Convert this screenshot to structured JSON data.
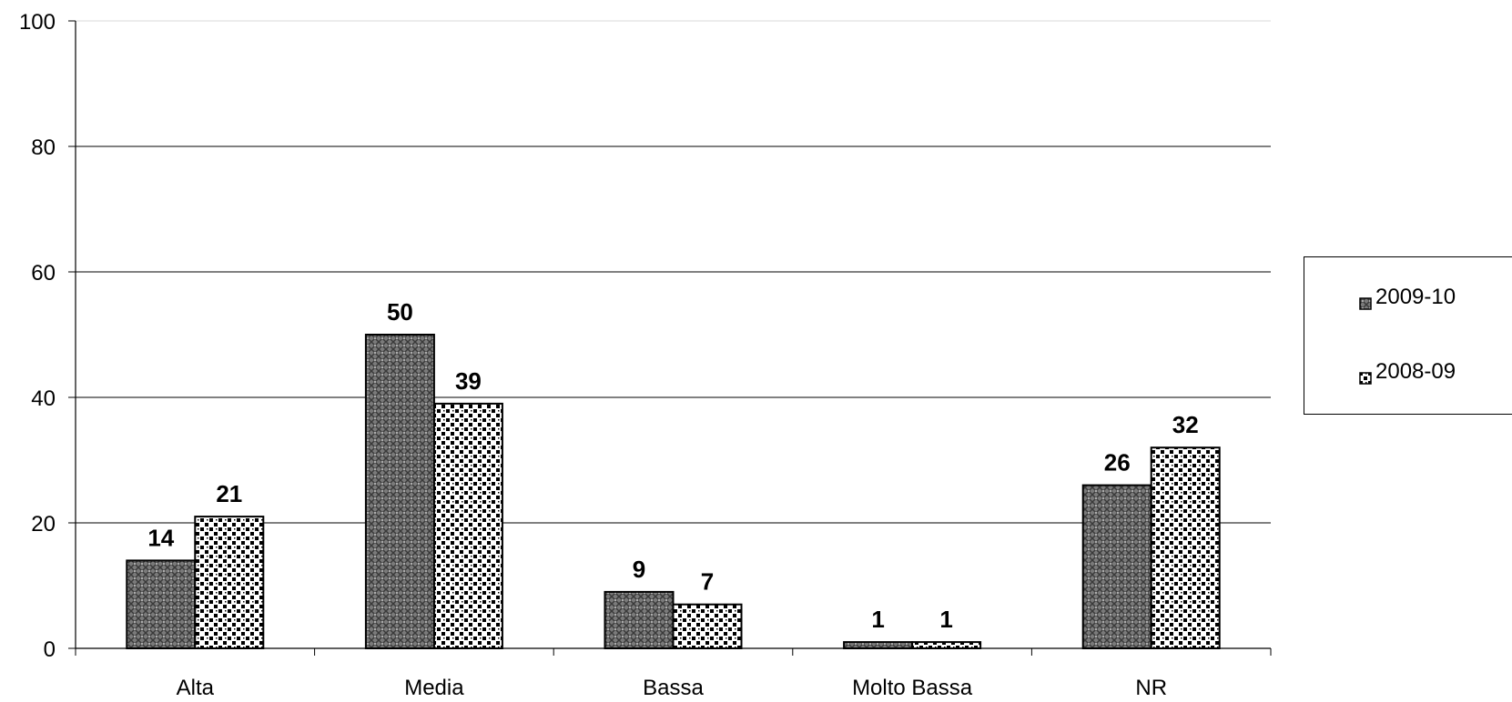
{
  "chart_data": {
    "type": "bar",
    "categories": [
      "Alta",
      "Media",
      "Bassa",
      "Molto Bassa",
      "NR"
    ],
    "series": [
      {
        "name": "2009-10",
        "values": [
          14,
          50,
          9,
          1,
          26
        ],
        "pattern": "crosshatch-dots"
      },
      {
        "name": "2008-09",
        "values": [
          21,
          39,
          7,
          1,
          32
        ],
        "pattern": "checker-dots"
      }
    ],
    "ylim": [
      0,
      100
    ],
    "yticks": [
      "0",
      "20",
      "40",
      "60",
      "80",
      "100"
    ],
    "xlabel": "",
    "ylabel": "",
    "title": "",
    "grid": true,
    "legend_position": "right",
    "data_labels": true
  }
}
